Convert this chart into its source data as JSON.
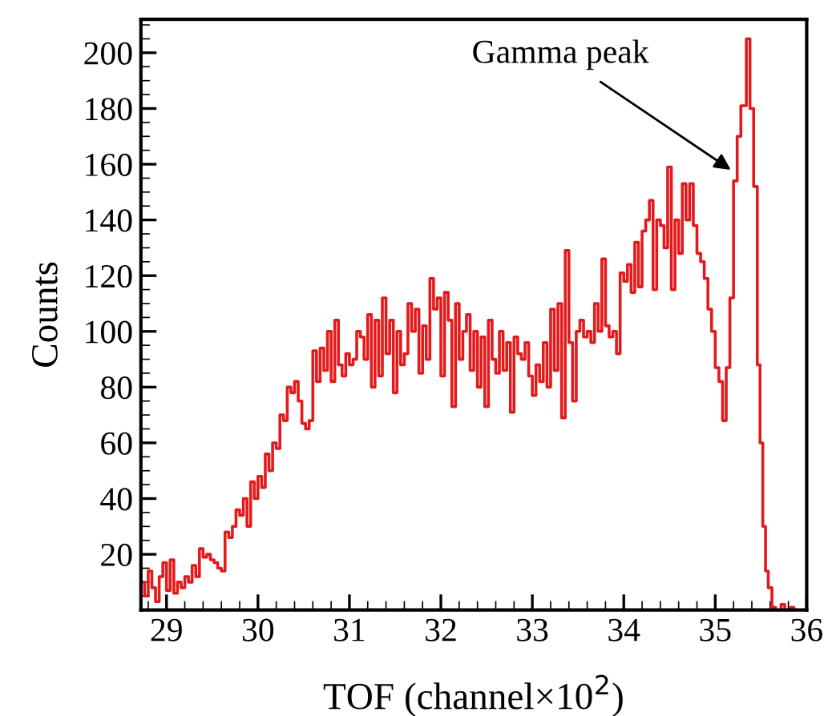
{
  "chart_data": {
    "type": "step",
    "xlabel": "TOF (channel×10$^{2}$)",
    "ylabel": "Counts",
    "xlim": [
      28.72,
      36.0
    ],
    "ylim": [
      0,
      212
    ],
    "xticks": [
      29,
      30,
      31,
      32,
      33,
      34,
      35,
      36
    ],
    "yticks": [
      20,
      40,
      60,
      80,
      100,
      120,
      140,
      160,
      180,
      200
    ],
    "grid": false,
    "annotations": [
      {
        "text": "Gamma peak",
        "x": 35.17,
        "y": 158
      }
    ],
    "series": [
      {
        "color": "#e31a1c",
        "x": [
          28.72,
          28.76,
          28.8,
          28.84,
          28.88,
          28.92,
          28.96,
          29.0,
          29.04,
          29.08,
          29.12,
          29.16,
          29.2,
          29.24,
          29.28,
          29.32,
          29.36,
          29.4,
          29.44,
          29.48,
          29.52,
          29.56,
          29.6,
          29.64,
          29.68,
          29.72,
          29.76,
          29.8,
          29.84,
          29.88,
          29.92,
          29.96,
          30.0,
          30.04,
          30.08,
          30.12,
          30.16,
          30.2,
          30.24,
          30.28,
          30.32,
          30.36,
          30.4,
          30.44,
          30.48,
          30.52,
          30.56,
          30.6,
          30.64,
          30.68,
          30.72,
          30.76,
          30.8,
          30.84,
          30.88,
          30.92,
          30.96,
          31.0,
          31.04,
          31.08,
          31.12,
          31.16,
          31.2,
          31.24,
          31.28,
          31.32,
          31.36,
          31.4,
          31.44,
          31.48,
          31.52,
          31.56,
          31.6,
          31.64,
          31.68,
          31.72,
          31.76,
          31.8,
          31.84,
          31.88,
          31.92,
          31.96,
          32.0,
          32.04,
          32.08,
          32.12,
          32.16,
          32.2,
          32.24,
          32.28,
          32.32,
          32.36,
          32.4,
          32.44,
          32.48,
          32.52,
          32.56,
          32.6,
          32.64,
          32.68,
          32.72,
          32.76,
          32.8,
          32.84,
          32.88,
          32.92,
          32.96,
          33.0,
          33.04,
          33.08,
          33.12,
          33.16,
          33.2,
          33.24,
          33.28,
          33.32,
          33.36,
          33.4,
          33.44,
          33.48,
          33.52,
          33.56,
          33.6,
          33.64,
          33.68,
          33.72,
          33.76,
          33.8,
          33.84,
          33.88,
          33.92,
          33.96,
          34.0,
          34.04,
          34.08,
          34.12,
          34.16,
          34.2,
          34.24,
          34.28,
          34.32,
          34.36,
          34.4,
          34.44,
          34.48,
          34.52,
          34.56,
          34.6,
          34.64,
          34.68,
          34.72,
          34.76,
          34.8,
          34.84,
          34.88,
          34.92,
          34.96,
          35.0,
          35.04,
          35.08,
          35.12,
          35.16,
          35.2,
          35.24,
          35.28,
          35.32,
          35.34,
          35.38,
          35.42,
          35.46,
          35.49,
          35.52,
          35.55,
          35.58,
          35.62,
          35.66,
          35.72,
          35.76,
          35.82,
          35.86,
          35.92
        ],
        "values": [
          10,
          5,
          14,
          8,
          3,
          12,
          17,
          7,
          18,
          6,
          10,
          8,
          12,
          10,
          16,
          12,
          22,
          19,
          20,
          18,
          17,
          15,
          14,
          28,
          26,
          30,
          36,
          34,
          40,
          30,
          46,
          40,
          48,
          44,
          56,
          50,
          60,
          58,
          70,
          68,
          80,
          78,
          82,
          75,
          67,
          65,
          68,
          93,
          82,
          94,
          86,
          100,
          82,
          104,
          88,
          84,
          92,
          88,
          90,
          100,
          98,
          90,
          106,
          80,
          104,
          84,
          112,
          92,
          104,
          78,
          100,
          88,
          92,
          110,
          100,
          108,
          85,
          102,
          90,
          119,
          108,
          112,
          84,
          114,
          104,
          73,
          110,
          90,
          100,
          106,
          86,
          100,
          80,
          98,
          73,
          104,
          90,
          85,
          100,
          86,
          96,
          71,
          98,
          92,
          90,
          96,
          84,
          77,
          88,
          82,
          96,
          80,
          108,
          86,
          110,
          69,
          129,
          96,
          75,
          100,
          104,
          98,
          100,
          96,
          110,
          100,
          126,
          102,
          98,
          100,
          92,
          121,
          118,
          124,
          114,
          132,
          116,
          136,
          140,
          147,
          115,
          140,
          138,
          130,
          159,
          115,
          140,
          128,
          153,
          140,
          153,
          138,
          128,
          125,
          119,
          108,
          100,
          87,
          82,
          68,
          87,
          112,
          154,
          170,
          181,
          181,
          205,
          180,
          152,
          88,
          60,
          30,
          14,
          8,
          1,
          0,
          2,
          0,
          1,
          0,
          0
        ]
      }
    ]
  }
}
